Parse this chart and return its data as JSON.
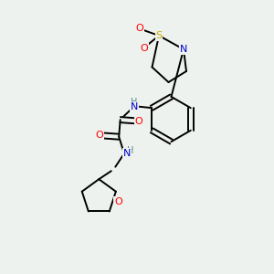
{
  "bg_color": "#eef2ee",
  "atom_colors": {
    "C": "#000000",
    "N": "#0000cc",
    "O": "#ff0000",
    "S": "#ccaa00",
    "H": "#4a8a8a"
  },
  "bond_color": "#000000",
  "bond_width": 1.4
}
